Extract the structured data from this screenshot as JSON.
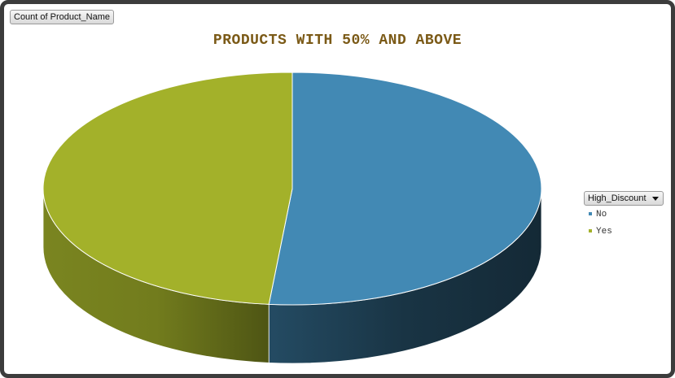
{
  "field_button": "Count of Product_Name",
  "legend_field": "High_Discount",
  "chart_data": {
    "type": "pie",
    "title": "PRODUCTS WITH 50% AND ABOVE",
    "categories": [
      "No",
      "Yes"
    ],
    "values": [
      51.5,
      48.5
    ],
    "colors": {
      "No": "#4289b4",
      "Yes": "#a3b12a"
    },
    "legend_placement": "right",
    "style": "3d"
  }
}
